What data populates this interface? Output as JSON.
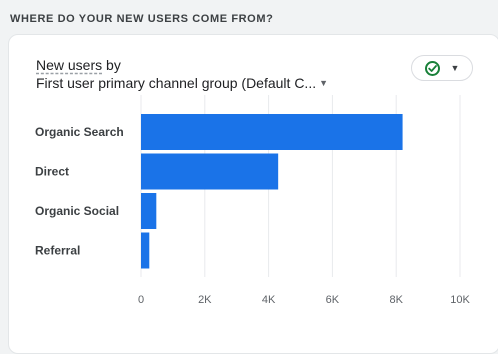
{
  "section": {
    "title": "WHERE DO YOUR NEW USERS COME FROM?"
  },
  "card": {
    "metric_label": "New users",
    "by_label": " by",
    "dimension_label": "First user primary channel group (Default C...",
    "dimension_caret": "▼",
    "compare_icon": "check-circle-icon",
    "compare_caret": "▼"
  },
  "colors": {
    "bar": "#1a73e8",
    "check": "#188038",
    "grid": "#e8eaed"
  },
  "chart_data": {
    "type": "bar",
    "orientation": "horizontal",
    "categories": [
      "Organic Search",
      "Direct",
      "Organic Social",
      "Referral"
    ],
    "values": [
      8200,
      4300,
      480,
      260
    ],
    "xlim": [
      0,
      10000
    ],
    "xticks": [
      0,
      2000,
      4000,
      6000,
      8000,
      10000
    ],
    "xtick_labels": [
      "0",
      "2K",
      "4K",
      "6K",
      "8K",
      "10K"
    ],
    "grid": true
  }
}
